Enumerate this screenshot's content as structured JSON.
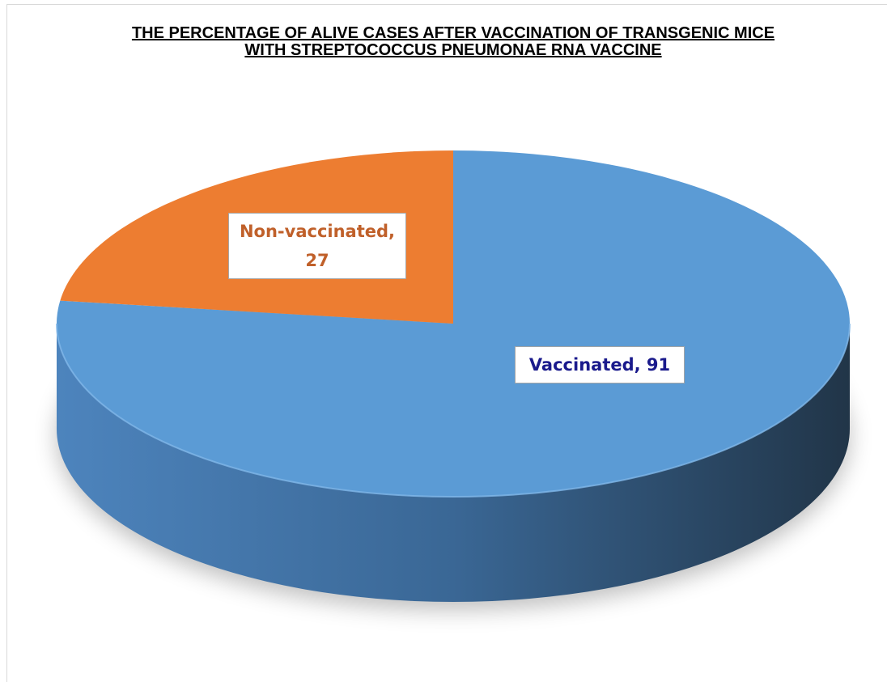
{
  "chart_data": {
    "type": "pie",
    "title": "THE PERCENTAGE OF ALIVE  CASES AFTER VACCINATION OF TRANSGENIC MICE WITH STREPTOCOCCUS PNEUMONAE RNA VACCINE",
    "categories": [
      "Vaccinated",
      "Non-vaccinated"
    ],
    "values": [
      91,
      27
    ],
    "value_labels": [
      "Vaccinated, 91",
      "Non-vaccinated, 27"
    ],
    "colors": [
      "#5b9bd5",
      "#ed7d31"
    ]
  }
}
